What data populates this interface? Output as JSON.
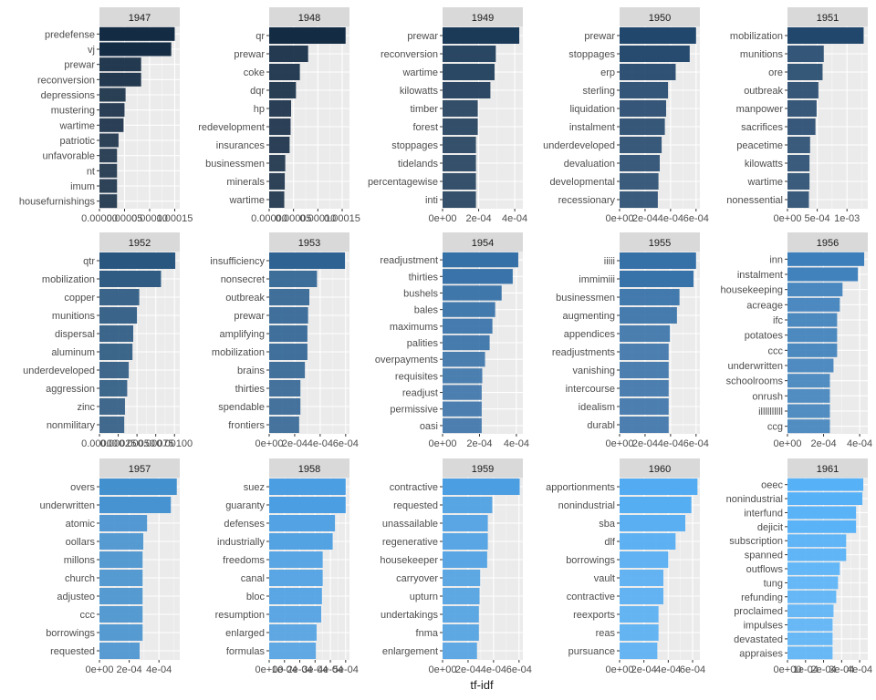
{
  "chart_data": {
    "type": "bar",
    "orientation": "horizontal",
    "xlabel": "tf-idf",
    "facets": [
      {
        "year": "1947",
        "ticks": [
          "0.00000",
          "0.00005",
          "0.00010",
          "0.00015"
        ],
        "tick_values": [
          0,
          5e-05,
          0.0001,
          0.00015
        ],
        "xlim": [
          0,
          0.00016
        ],
        "categories": [
          "predefense",
          "vj",
          "prewar",
          "reconversion",
          "depressions",
          "mustering",
          "wartime",
          "patriotic",
          "unfavorable",
          "nt",
          "imum",
          "housefurnishings"
        ],
        "values": [
          0.00015,
          0.000143,
          8.3e-05,
          8.3e-05,
          5.2e-05,
          5e-05,
          4.8e-05,
          3.8e-05,
          3.5e-05,
          3.5e-05,
          3.5e-05,
          3.5e-05
        ]
      },
      {
        "year": "1948",
        "ticks": [
          "0.00000",
          "0.00005",
          "0.00010",
          "0.00015"
        ],
        "tick_values": [
          0,
          5e-05,
          0.0001,
          0.00015
        ],
        "xlim": [
          0,
          0.000165
        ],
        "categories": [
          "qr",
          "prewar",
          "coke",
          "dqr",
          "hp",
          "redevelopment",
          "insurances",
          "businessmen",
          "minerals",
          "wartime"
        ],
        "values": [
          0.000157,
          8e-05,
          6.3e-05,
          5.5e-05,
          4.5e-05,
          4.4e-05,
          4.2e-05,
          3.3e-05,
          3.2e-05,
          3.1e-05
        ]
      },
      {
        "year": "1949",
        "ticks": [
          "0e+00",
          "2e-04",
          "4e-04"
        ],
        "tick_values": [
          0,
          0.0002,
          0.0004
        ],
        "xlim": [
          0,
          0.000445
        ],
        "categories": [
          "prewar",
          "reconversion",
          "wartime",
          "kilowatts",
          "timber",
          "forest",
          "stoppages",
          "tidelands",
          "percentagewise",
          "inti"
        ],
        "values": [
          0.000425,
          0.000295,
          0.000288,
          0.000265,
          0.000195,
          0.000195,
          0.000185,
          0.000185,
          0.000185,
          0.000185
        ]
      },
      {
        "year": "1950",
        "ticks": [
          "0e+00",
          "2e-04",
          "4e-04",
          "6e-04"
        ],
        "tick_values": [
          0,
          0.0002,
          0.0004,
          0.0006
        ],
        "xlim": [
          0,
          0.00063
        ],
        "categories": [
          "prewar",
          "stoppages",
          "erp",
          "sterling",
          "liquidation",
          "instalment",
          "underdeveloped",
          "devaluation",
          "developmental",
          "recessionary"
        ],
        "values": [
          0.0006,
          0.00055,
          0.00044,
          0.00038,
          0.000365,
          0.000355,
          0.00033,
          0.000315,
          0.000305,
          0.0003
        ]
      },
      {
        "year": "1951",
        "ticks": [
          "0e+00",
          "5e-04",
          "1e-03"
        ],
        "tick_values": [
          0,
          0.0005,
          0.001
        ],
        "xlim": [
          0,
          0.00135
        ],
        "categories": [
          "mobilization",
          "munitions",
          "ore",
          "outbreak",
          "manpower",
          "sacrifices",
          "peacetime",
          "kilowatts",
          "wartime",
          "nonessential"
        ],
        "values": [
          0.00128,
          0.00061,
          0.00059,
          0.00052,
          0.00049,
          0.00047,
          0.00038,
          0.00037,
          0.00037,
          0.00036
        ]
      },
      {
        "year": "1952",
        "ticks": [
          "0.00000",
          "0.00025",
          "0.00050",
          "0.00075",
          "0.00100"
        ],
        "tick_values": [
          0,
          0.00025,
          0.0005,
          0.00075,
          0.001
        ],
        "xlim": [
          0,
          0.00107
        ],
        "categories": [
          "qtr",
          "mobilization",
          "copper",
          "munitions",
          "dispersal",
          "aluminum",
          "underdeveloped",
          "aggression",
          "zinc",
          "nonmilitary"
        ],
        "values": [
          0.00101,
          0.00082,
          0.00053,
          0.0005,
          0.00045,
          0.00044,
          0.00039,
          0.00037,
          0.00034,
          0.00033
        ]
      },
      {
        "year": "1953",
        "ticks": [
          "0e+00",
          "2e-04",
          "4e-04",
          "6e-04"
        ],
        "tick_values": [
          0,
          0.0002,
          0.0004,
          0.0006
        ],
        "xlim": [
          0,
          0.00063
        ],
        "categories": [
          "insufficiency",
          "nonsecret",
          "outbreak",
          "prewar",
          "amplifying",
          "mobilization",
          "brains",
          "thirties",
          "spendable",
          "frontiers"
        ],
        "values": [
          0.000595,
          0.000375,
          0.000315,
          0.000305,
          0.0003,
          0.0003,
          0.00028,
          0.000245,
          0.000245,
          0.000235
        ]
      },
      {
        "year": "1954",
        "ticks": [
          "0e+00",
          "2e-04",
          "4e-04"
        ],
        "tick_values": [
          0,
          0.0002,
          0.0004
        ],
        "xlim": [
          0,
          0.000435
        ],
        "categories": [
          "readjustment",
          "thirties",
          "bushels",
          "bales",
          "maximums",
          "palities",
          "overpayments",
          "requisites",
          "readjust",
          "permissive",
          "oasi"
        ],
        "values": [
          0.00041,
          0.00038,
          0.00032,
          0.000285,
          0.00027,
          0.000255,
          0.00023,
          0.000215,
          0.000212,
          0.000212,
          0.000212
        ]
      },
      {
        "year": "1955",
        "ticks": [
          "0e+00",
          "2e-04",
          "4e-04",
          "6e-04"
        ],
        "tick_values": [
          0,
          0.0002,
          0.0004,
          0.0006
        ],
        "xlim": [
          0,
          0.00063
        ],
        "categories": [
          "iiiii",
          "immimiii",
          "businessmen",
          "augmenting",
          "appendices",
          "readjustments",
          "vanishing",
          "intercourse",
          "idealism",
          "durabl"
        ],
        "values": [
          0.0006,
          0.00058,
          0.00047,
          0.00045,
          0.000395,
          0.000385,
          0.000385,
          0.000385,
          0.000385,
          0.000385
        ]
      },
      {
        "year": "1956",
        "ticks": [
          "0e+00",
          "2e-04",
          "4e-04"
        ],
        "tick_values": [
          0,
          0.0002,
          0.0004
        ],
        "xlim": [
          0,
          0.000445
        ],
        "categories": [
          "inn",
          "instalment",
          "housekeeping",
          "acreage",
          "ifc",
          "potatoes",
          "ccc",
          "underwritten",
          "schoolrooms",
          "onrush",
          "illllllllll",
          "ccg"
        ],
        "values": [
          0.000425,
          0.00039,
          0.000305,
          0.00029,
          0.000275,
          0.000275,
          0.000275,
          0.000255,
          0.000235,
          0.000235,
          0.000235,
          0.000235
        ]
      },
      {
        "year": "1957",
        "ticks": [
          "0e+00",
          "2e-04",
          "4e-04"
        ],
        "tick_values": [
          0,
          0.0002,
          0.0004
        ],
        "xlim": [
          0,
          0.00054
        ],
        "categories": [
          "overs",
          "underwritten",
          "atomic",
          "oollars",
          "millons",
          "church",
          "adjusteo",
          "ccc",
          "borrowings",
          "requested"
        ],
        "values": [
          0.00052,
          0.00048,
          0.00032,
          0.000295,
          0.00029,
          0.00029,
          0.00029,
          0.00029,
          0.00029,
          0.00027
        ]
      },
      {
        "year": "1958",
        "ticks": [
          "0e+00",
          "1e-04",
          "2e-04",
          "3e-04",
          "4e-04",
          "5e-04"
        ],
        "tick_values": [
          0,
          0.0001,
          0.0002,
          0.0003,
          0.0004,
          0.0005
        ],
        "xlim": [
          0,
          0.000525
        ],
        "categories": [
          "suez",
          "guaranty",
          "defenses",
          "industrially",
          "freedoms",
          "canal",
          "bloc",
          "resumption",
          "enlarged",
          "formulas"
        ],
        "values": [
          0.0005,
          0.0005,
          0.00043,
          0.000415,
          0.00035,
          0.00035,
          0.000345,
          0.00034,
          0.00031,
          0.000305
        ]
      },
      {
        "year": "1959",
        "ticks": [
          "0e+00",
          "2e-04",
          "4e-04",
          "6e-04"
        ],
        "tick_values": [
          0,
          0.0002,
          0.0004,
          0.0006
        ],
        "xlim": [
          0,
          0.00063
        ],
        "categories": [
          "contractive",
          "requested",
          "unassailable",
          "regenerative",
          "housekeeper",
          "carryover",
          "upturn",
          "undertakings",
          "fnma",
          "enlargement"
        ],
        "values": [
          0.000605,
          0.00039,
          0.000355,
          0.000355,
          0.00035,
          0.000295,
          0.00029,
          0.000285,
          0.000285,
          0.00027
        ]
      },
      {
        "year": "1960",
        "ticks": [
          "0e+00",
          "2e-04",
          "4e-04",
          "6e-04"
        ],
        "tick_values": [
          0,
          0.0002,
          0.0004,
          0.0006
        ],
        "xlim": [
          0,
          0.00066
        ],
        "categories": [
          "apportionments",
          "nonindustrial",
          "sba",
          "dlf",
          "borrowings",
          "vault",
          "contractive",
          "reexports",
          "reas",
          "pursuance"
        ],
        "values": [
          0.00064,
          0.00059,
          0.00054,
          0.00046,
          0.0004,
          0.00036,
          0.00036,
          0.00032,
          0.00032,
          0.00031
        ]
      },
      {
        "year": "1961",
        "ticks": [
          "0e+00",
          "1e-04",
          "2e-04",
          "3e-04",
          "4e-04"
        ],
        "tick_values": [
          0,
          0.0001,
          0.0002,
          0.0003,
          0.0004
        ],
        "xlim": [
          0,
          0.000445
        ],
        "categories": [
          "oeec",
          "nonindustrial",
          "interfund",
          "dejicit",
          "subscription",
          "spanned",
          "outflows",
          "tung",
          "refunding",
          "proclaimed",
          "impulses",
          "devastated",
          "appraises"
        ],
        "values": [
          0.00042,
          0.000415,
          0.00038,
          0.00038,
          0.000325,
          0.000325,
          0.00029,
          0.00028,
          0.00027,
          0.000255,
          0.00025,
          0.00025,
          0.00025
        ]
      }
    ],
    "colors": [
      "#132b43",
      "#1b3a58",
      "#22476c",
      "#28567f",
      "#2e6292",
      "#3570a7",
      "#3c7fbb",
      "#4390cf",
      "#4b9ee2",
      "#53acf2",
      "#56b1f7"
    ]
  }
}
